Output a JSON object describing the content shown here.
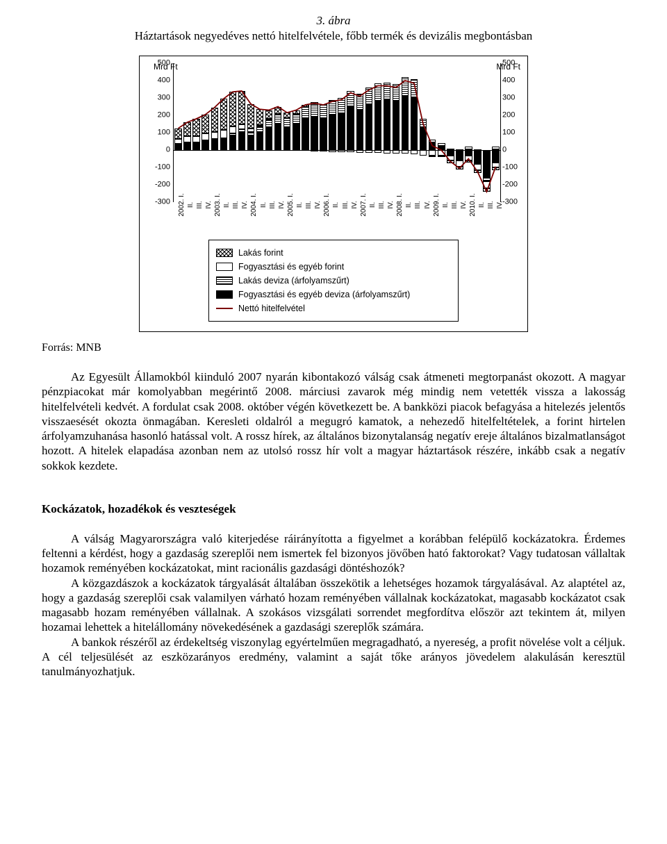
{
  "figure": {
    "caption": "3. ábra",
    "subtitle": "Háztartások negyedéves nettó hitelfelvétele, főbb termék és devizális megbontásban"
  },
  "chart": {
    "type": "stacked-bar-with-line",
    "unit_left": "Mrd Ft",
    "unit_right": "Mrd Ft",
    "y_min": -300,
    "y_max": 500,
    "y_step": 100,
    "line_color": "#7c0000",
    "line_width": 1.8,
    "colors": {
      "background": "#ffffff",
      "border": "#000000",
      "text": "#000000"
    },
    "series_order": [
      "fogy_deviza",
      "lakas_deviza",
      "fogy_forint",
      "lakas_forint"
    ],
    "series_meta": {
      "lakas_forint": {
        "label": "Lakás forint",
        "pattern": "pat-cross"
      },
      "fogy_forint": {
        "label": "Fogyasztási és egyéb forint",
        "pattern": "pat-white"
      },
      "lakas_deviza": {
        "label": "Lakás deviza (árfolyamszűrt)",
        "pattern": "pat-hstripe"
      },
      "fogy_deviza": {
        "label": "Fogyasztási és egyéb deviza (árfolyamszűrt)",
        "pattern": "pat-black"
      },
      "net": {
        "label": "Nettó hitelfelvétel"
      }
    },
    "x_labels": [
      "2002. I.",
      "II.",
      "III.",
      "IV.",
      "2003. I.",
      "II.",
      "III.",
      "IV.",
      "2004. I.",
      "II.",
      "III.",
      "IV.",
      "2005. I.",
      "II.",
      "III.",
      "IV.",
      "2006. I.",
      "II.",
      "III.",
      "IV.",
      "2007. I.",
      "II.",
      "III.",
      "IV.",
      "2008. I.",
      "II.",
      "III.",
      "IV.",
      "2009. I.",
      "II.",
      "III.",
      "IV.",
      "2010. I.",
      "II.",
      "III.",
      "IV."
    ],
    "data": [
      {
        "lakas_forint": 60,
        "fogy_forint": 30,
        "lakas_deviza": 5,
        "fogy_deviza": 30,
        "net": 125
      },
      {
        "lakas_forint": 80,
        "fogy_forint": 35,
        "lakas_deviza": 5,
        "fogy_deviza": 40,
        "net": 160
      },
      {
        "lakas_forint": 100,
        "fogy_forint": 35,
        "lakas_deviza": 5,
        "fogy_deviza": 40,
        "net": 180
      },
      {
        "lakas_forint": 110,
        "fogy_forint": 40,
        "lakas_deviza": 5,
        "fogy_deviza": 50,
        "net": 205
      },
      {
        "lakas_forint": 140,
        "fogy_forint": 40,
        "lakas_deviza": 10,
        "fogy_deviza": 55,
        "net": 245
      },
      {
        "lakas_forint": 180,
        "fogy_forint": 45,
        "lakas_deviza": 10,
        "fogy_deviza": 60,
        "net": 295
      },
      {
        "lakas_forint": 200,
        "fogy_forint": 40,
        "lakas_deviza": 15,
        "fogy_deviza": 80,
        "net": 335
      },
      {
        "lakas_forint": 190,
        "fogy_forint": 30,
        "lakas_deviza": 20,
        "fogy_deviza": 100,
        "net": 340
      },
      {
        "lakas_forint": 140,
        "fogy_forint": 20,
        "lakas_deviza": 25,
        "fogy_deviza": 80,
        "net": 265
      },
      {
        "lakas_forint": 90,
        "fogy_forint": 10,
        "lakas_deviza": 35,
        "fogy_deviza": 100,
        "net": 235
      },
      {
        "lakas_forint": 50,
        "fogy_forint": 5,
        "lakas_deviza": 45,
        "fogy_deviza": 130,
        "net": 230
      },
      {
        "lakas_forint": 40,
        "fogy_forint": 5,
        "lakas_deviza": 55,
        "fogy_deviza": 150,
        "net": 250
      },
      {
        "lakas_forint": 30,
        "fogy_forint": 0,
        "lakas_deviza": 55,
        "fogy_deviza": 130,
        "net": 215
      },
      {
        "lakas_forint": 20,
        "fogy_forint": 0,
        "lakas_deviza": 60,
        "fogy_deviza": 150,
        "net": 230
      },
      {
        "lakas_forint": 10,
        "fogy_forint": 0,
        "lakas_deviza": 70,
        "fogy_deviza": 180,
        "net": 260
      },
      {
        "lakas_forint": 10,
        "fogy_forint": -5,
        "lakas_deviza": 75,
        "fogy_deviza": 190,
        "net": 270
      },
      {
        "lakas_forint": 5,
        "fogy_forint": -5,
        "lakas_deviza": 80,
        "fogy_deviza": 180,
        "net": 260
      },
      {
        "lakas_forint": 5,
        "fogy_forint": -10,
        "lakas_deviza": 85,
        "fogy_deviza": 200,
        "net": 280
      },
      {
        "lakas_forint": 0,
        "fogy_forint": -10,
        "lakas_deviza": 90,
        "fogy_deviza": 210,
        "net": 290
      },
      {
        "lakas_forint": 0,
        "fogy_forint": -10,
        "lakas_deviza": 90,
        "fogy_deviza": 250,
        "net": 330
      },
      {
        "lakas_forint": 0,
        "fogy_forint": -15,
        "lakas_deviza": 95,
        "fogy_deviza": 230,
        "net": 310
      },
      {
        "lakas_forint": 0,
        "fogy_forint": -15,
        "lakas_deviza": 100,
        "fogy_deviza": 260,
        "net": 345
      },
      {
        "lakas_forint": 0,
        "fogy_forint": -15,
        "lakas_deviza": 105,
        "fogy_deviza": 280,
        "net": 370
      },
      {
        "lakas_forint": 0,
        "fogy_forint": -20,
        "lakas_deviza": 100,
        "fogy_deviza": 290,
        "net": 370
      },
      {
        "lakas_forint": 0,
        "fogy_forint": -20,
        "lakas_deviza": 100,
        "fogy_deviza": 280,
        "net": 360
      },
      {
        "lakas_forint": 0,
        "fogy_forint": -20,
        "lakas_deviza": 110,
        "fogy_deviza": 310,
        "net": 400
      },
      {
        "lakas_forint": 0,
        "fogy_forint": -25,
        "lakas_deviza": 110,
        "fogy_deviza": 300,
        "net": 385
      },
      {
        "lakas_forint": 0,
        "fogy_forint": -30,
        "lakas_deviza": 50,
        "fogy_deviza": 130,
        "net": 150
      },
      {
        "lakas_forint": -5,
        "fogy_forint": -30,
        "lakas_deviza": 20,
        "fogy_deviza": 40,
        "net": 25
      },
      {
        "lakas_forint": -10,
        "fogy_forint": -30,
        "lakas_deviza": 20,
        "fogy_deviza": 20,
        "net": 0
      },
      {
        "lakas_forint": -15,
        "fogy_forint": -30,
        "lakas_deviza": 10,
        "fogy_deviza": -30,
        "net": -65
      },
      {
        "lakas_forint": -15,
        "fogy_forint": -35,
        "lakas_deviza": 5,
        "fogy_deviza": -60,
        "net": -105
      },
      {
        "lakas_forint": -10,
        "fogy_forint": -30,
        "lakas_deviza": 20,
        "fogy_deviza": -30,
        "net": -50
      },
      {
        "lakas_forint": -15,
        "fogy_forint": -35,
        "lakas_deviza": 5,
        "fogy_deviza": -80,
        "net": -125
      },
      {
        "lakas_forint": -20,
        "fogy_forint": -40,
        "lakas_deviza": -20,
        "fogy_deviza": -160,
        "net": -240
      },
      {
        "lakas_forint": -15,
        "fogy_forint": -30,
        "lakas_deviza": 20,
        "fogy_deviza": -70,
        "net": -95
      }
    ]
  },
  "source": "Forrás: MNB",
  "para1": "Az Egyesült Államokból kiinduló 2007 nyarán kibontakozó válság csak átmeneti megtorpanást okozott. A magyar pénzpiacokat már komolyabban megérintő 2008. márciusi zavarok még mindig nem vetették vissza a lakosság hitelfelvételi kedvét. A fordulat csak 2008. október végén következett be. A bankközi piacok befagyása a hitelezés jelentős visszaesését okozta önmagában. Keresleti oldalról a megugró kamatok, a nehezedő hitelfeltételek, a forint hirtelen árfolyamzuhanása hasonló hatással volt. A rossz hírek, az általános bizonytalanság negatív ereje általános bizalmatlanságot hozott. A hitelek elapadása azonban nem az utolsó rossz hír volt a magyar háztartások részére, inkább csak a negatív sokkok kezdete.",
  "section": "Kockázatok, hozadékok és veszteségek",
  "para2": "A válság Magyarországra való kiterjedése ráirányította a figyelmet a korábban felépülő kockázatokra. Érdemes feltenni a kérdést, hogy a gazdaság szereplői nem ismertek fel bizonyos jövőben ható faktorokat? Vagy tudatosan vállaltak hozamok reményében kockázatokat, mint racionális gazdasági döntéshozók?",
  "para3": "A közgazdászok a kockázatok tárgyalását általában összekötik a lehetséges hozamok tárgyalásával. Az alaptétel az, hogy a gazdaság szereplői csak valamilyen várható hozam reményében vállalnak kockázatokat, magasabb kockázatot csak magasabb hozam reményében vállalnak. A szokásos vizsgálati sorrendet megfordítva először azt tekintem át, milyen hozamai lehettek a hitelállomány növekedésének a gazdasági szereplők számára.",
  "para4": "A bankok részéről az érdekeltség viszonylag egyértelműen megragadható, a nyereség, a profit növelése volt a céljuk. A cél teljesülését az eszközarányos eredmény, valamint a saját tőke arányos jövedelem alakulásán keresztül tanulmányozhatjuk."
}
